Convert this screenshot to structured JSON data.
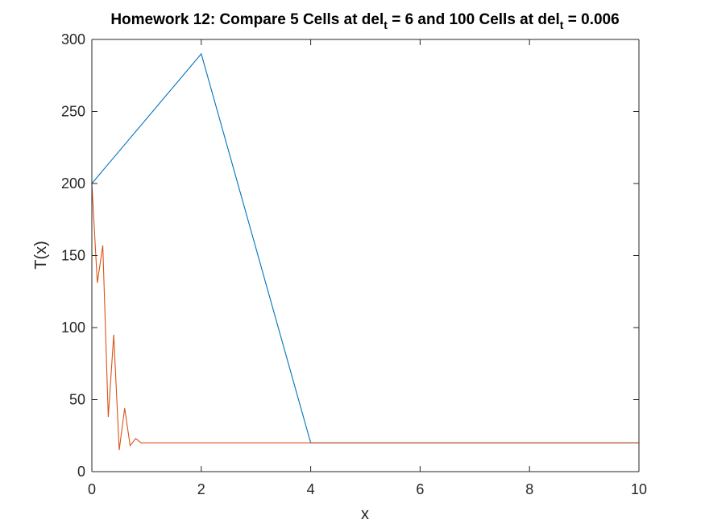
{
  "chart_data": {
    "type": "line",
    "title": {
      "parts": [
        {
          "text": "Homework 12: Compare 5 Cells at del",
          "sub": false
        },
        {
          "text": "t",
          "sub": true
        },
        {
          "text": " = 6 and 100 Cells at del",
          "sub": false
        },
        {
          "text": "t",
          "sub": true
        },
        {
          "text": " = 0.006",
          "sub": false
        }
      ]
    },
    "xlabel": "x",
    "ylabel": "T(x)",
    "xlim": [
      0,
      10
    ],
    "ylim": [
      0,
      300
    ],
    "xticks": [
      0,
      2,
      4,
      6,
      8,
      10
    ],
    "yticks": [
      0,
      50,
      100,
      150,
      200,
      250,
      300
    ],
    "grid": false,
    "box": true,
    "series": [
      {
        "color": "#0072BD",
        "x": [
          0,
          2,
          4,
          6,
          8,
          10
        ],
        "y": [
          200,
          290,
          20,
          20,
          20,
          20
        ]
      },
      {
        "color": "#D95319",
        "x": [
          0,
          0.1,
          0.2,
          0.3,
          0.4,
          0.5,
          0.6,
          0.7,
          0.8,
          0.9,
          1.0,
          2,
          4,
          6,
          8,
          10
        ],
        "y": [
          200,
          131,
          157,
          38,
          95,
          15,
          44,
          18,
          23,
          20,
          20,
          20,
          20,
          20,
          20,
          20
        ]
      }
    ]
  }
}
